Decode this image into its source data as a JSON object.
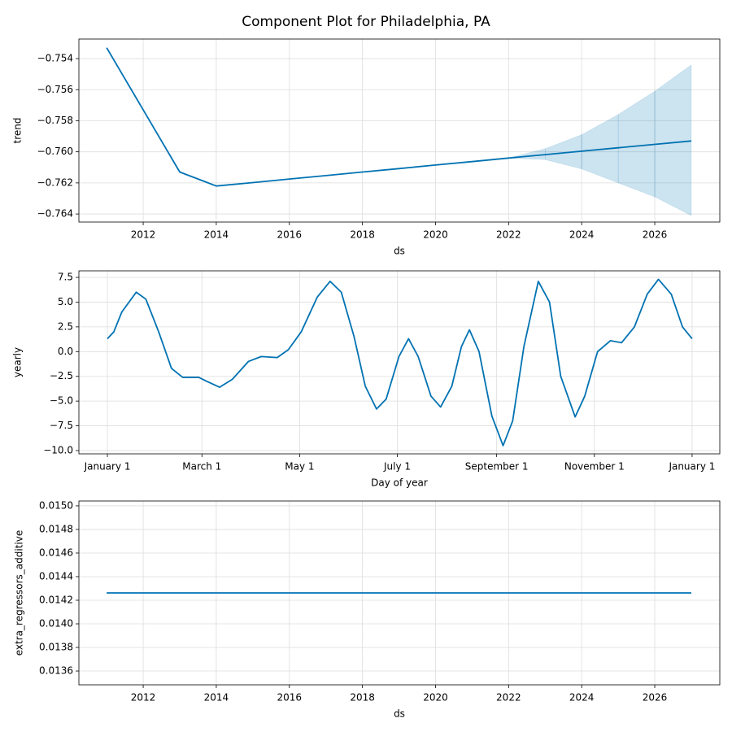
{
  "title": "Component Plot for Philadelphia, PA",
  "chart_data": [
    {
      "type": "line",
      "xlabel": "ds",
      "ylabel": "trend",
      "color": "#0072B2",
      "grid": true,
      "x": [
        2011,
        2012,
        2013,
        2014,
        2015,
        2016,
        2017,
        2018,
        2019,
        2020,
        2021,
        2022,
        2023,
        2024,
        2025,
        2026,
        2027
      ],
      "values": [
        -0.7533,
        -0.7573,
        -0.7613,
        -0.7622,
        -0.76198,
        -0.76175,
        -0.76153,
        -0.7613,
        -0.76108,
        -0.76085,
        -0.76063,
        -0.7604,
        -0.76018,
        -0.75996,
        -0.75974,
        -0.75952,
        -0.7593
      ],
      "upper": [
        null,
        null,
        null,
        null,
        null,
        null,
        null,
        null,
        null,
        null,
        null,
        -0.7604,
        -0.7598,
        -0.7589,
        -0.7576,
        -0.7561,
        -0.7544
      ],
      "lower": [
        null,
        null,
        null,
        null,
        null,
        null,
        null,
        null,
        null,
        null,
        null,
        -0.7604,
        -0.7605,
        -0.7611,
        -0.762,
        -0.7629,
        -0.7641
      ],
      "xlim": [
        2010.24,
        2027.78
      ],
      "xticks": [
        2012,
        2014,
        2016,
        2018,
        2020,
        2022,
        2024,
        2026
      ],
      "ylim": [
        -0.76452,
        -0.75274
      ],
      "yticks": [
        {
          "value": -0.764,
          "label": "−0.764"
        },
        {
          "value": -0.762,
          "label": "−0.762"
        },
        {
          "value": -0.76,
          "label": "−0.760"
        },
        {
          "value": -0.758,
          "label": "−0.758"
        },
        {
          "value": -0.756,
          "label": "−0.756"
        },
        {
          "value": -0.754,
          "label": "−0.754"
        }
      ]
    },
    {
      "type": "line",
      "xlabel": "Day of year",
      "ylabel": "yearly",
      "color": "#0072B2",
      "grid": true,
      "x": [
        0,
        4,
        9,
        18,
        24,
        32,
        40,
        47,
        57,
        62,
        70,
        78,
        88,
        96,
        106,
        113,
        121,
        131,
        139,
        146,
        154,
        161,
        168,
        174,
        182,
        188,
        194,
        202,
        208,
        215,
        221,
        226,
        232,
        240,
        247,
        253,
        260,
        269,
        276,
        283,
        292,
        298,
        306,
        314,
        321,
        329,
        337,
        344,
        352,
        359,
        365
      ],
      "values": [
        1.3,
        2.0,
        4.0,
        6.0,
        5.3,
        2.0,
        -1.7,
        -2.6,
        -2.6,
        -3.0,
        -3.6,
        -2.8,
        -1.0,
        -0.5,
        -0.6,
        0.2,
        2.0,
        5.5,
        7.1,
        6.0,
        1.5,
        -3.5,
        -5.8,
        -4.8,
        -0.5,
        1.3,
        -0.5,
        -4.5,
        -5.6,
        -3.5,
        0.5,
        2.2,
        0.0,
        -6.5,
        -9.5,
        -7.0,
        0.5,
        7.1,
        5.0,
        -2.5,
        -6.6,
        -4.5,
        0.0,
        1.1,
        0.9,
        2.5,
        5.8,
        7.3,
        5.8,
        2.5,
        1.3
      ],
      "xlim": [
        -17.8,
        382.3
      ],
      "xticks": [
        {
          "value": 0,
          "label": "January 1"
        },
        {
          "value": 59,
          "label": "March 1"
        },
        {
          "value": 120,
          "label": "May 1"
        },
        {
          "value": 181,
          "label": "July 1"
        },
        {
          "value": 243,
          "label": "September 1"
        },
        {
          "value": 304,
          "label": "November 1"
        },
        {
          "value": 365,
          "label": "January 1"
        }
      ],
      "ylim": [
        -10.33,
        8.16
      ],
      "yticks": [
        {
          "value": -10,
          "label": "−10.0"
        },
        {
          "value": -7.5,
          "label": "−7.5"
        },
        {
          "value": -5,
          "label": "−5.0"
        },
        {
          "value": -2.5,
          "label": "−2.5"
        },
        {
          "value": 0,
          "label": "0.0"
        },
        2.5,
        {
          "value": 5,
          "label": "5.0"
        },
        7.5
      ]
    },
    {
      "type": "line",
      "xlabel": "ds",
      "ylabel": "extra_regressors_additive",
      "color": "#0072B2",
      "grid": true,
      "x": [
        2011,
        2027
      ],
      "values": [
        0.014262,
        0.014262
      ],
      "xlim": [
        2010.24,
        2027.78
      ],
      "xticks": [
        2012,
        2014,
        2016,
        2018,
        2020,
        2022,
        2024,
        2026
      ],
      "ylim": [
        0.013483,
        0.015041
      ],
      "yticks": [
        0.0136,
        0.0138,
        {
          "value": 0.014,
          "label": "0.0140"
        },
        0.0142,
        0.0144,
        0.0146,
        0.0148,
        {
          "value": 0.015,
          "label": "0.0150"
        }
      ]
    }
  ]
}
